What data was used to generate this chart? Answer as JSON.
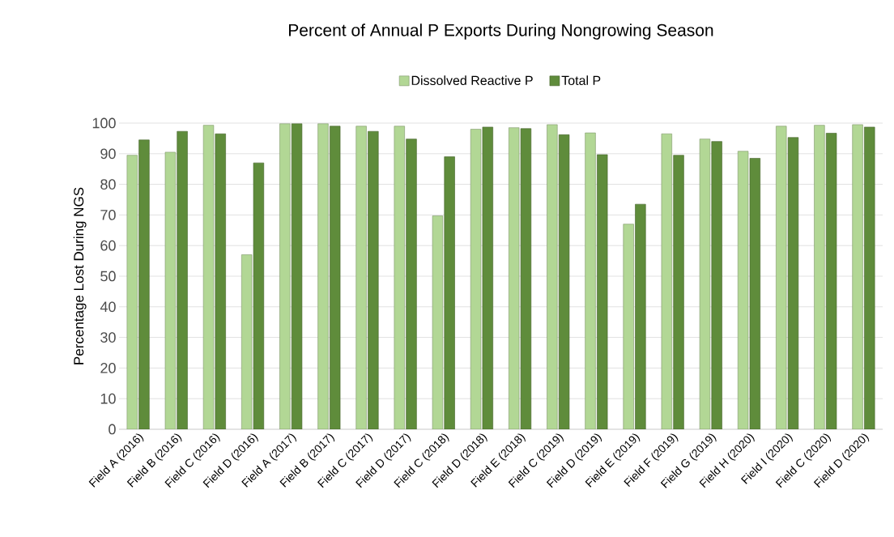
{
  "chart_data": {
    "type": "bar",
    "title": "Percent of Annual P Exports During Nongrowing Season",
    "ylabel": "Percentage Lost During NGS",
    "categories": [
      "Field A (2016)",
      "Field B (2016)",
      "Field C (2016)",
      "Field D (2016)",
      "Field A (2017)",
      "Field B (2017)",
      "Field C (2017)",
      "Field D (2017)",
      "Field C (2018)",
      "Field D (2018)",
      "Field E (2018)",
      "Field C (2019)",
      "Field D (2019)",
      "Field E (2019)",
      "Field F (2019)",
      "Field G (2019)",
      "Field H (2020)",
      "Field I (2020)",
      "Field C (2020)",
      "Field D (2020)"
    ],
    "series": [
      {
        "name": "Dissolved Reactive P",
        "color": "#b2d795",
        "values": [
          89.5,
          90.5,
          99.3,
          57,
          99.8,
          99.8,
          99,
          99,
          69.7,
          98,
          98.5,
          99.5,
          96.8,
          67,
          96.5,
          94.8,
          90.8,
          99,
          99.3,
          99.5
        ]
      },
      {
        "name": "Total P",
        "color": "#5f8c3b",
        "values": [
          94.5,
          97.3,
          96.5,
          87,
          99.8,
          99,
          97.3,
          94.8,
          89,
          98.7,
          98.2,
          96.2,
          89.7,
          73.5,
          89.5,
          94,
          88.5,
          95.3,
          96.7,
          98.7
        ]
      }
    ],
    "ylim": [
      0,
      100
    ],
    "yticks": [
      0,
      10,
      20,
      30,
      40,
      50,
      60,
      70,
      80,
      90,
      100
    ],
    "grid": "y",
    "legend": "top"
  }
}
